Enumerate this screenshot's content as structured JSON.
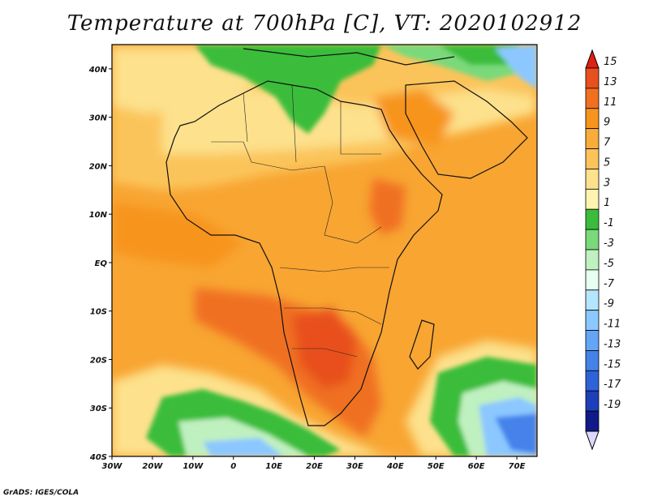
{
  "title": "Temperature at 700hPa [C], VT: 2020102912",
  "credit": "GrADS: IGES/COLA",
  "map": {
    "lon_ticks": [
      "30W",
      "20W",
      "10W",
      "0",
      "10E",
      "20E",
      "30E",
      "40E",
      "50E",
      "60E",
      "70E"
    ],
    "lat_ticks": [
      "40N",
      "30N",
      "20N",
      "10N",
      "EQ",
      "10S",
      "20S",
      "30S",
      "40S"
    ]
  },
  "colorbar": {
    "labels": [
      "15",
      "13",
      "11",
      "9",
      "7",
      "5",
      "3",
      "1",
      "-1",
      "-3",
      "-5",
      "-7",
      "-9",
      "-11",
      "-13",
      "-15",
      "-17",
      "-19"
    ],
    "colors": [
      "#e8501e",
      "#f07020",
      "#f7941e",
      "#f8ad3a",
      "#fbc45a",
      "#fde18c",
      "#fef3b0",
      "#3bbd3b",
      "#7ad97a",
      "#bff0bf",
      "#e6fff0",
      "#b4e6ff",
      "#8cc8ff",
      "#64a6f5",
      "#4482ea",
      "#2e62d8",
      "#1e3fba",
      "#101a88"
    ],
    "top_arrow_color": "#e02010",
    "bottom_arrow_color": "#dcd8ff"
  }
}
